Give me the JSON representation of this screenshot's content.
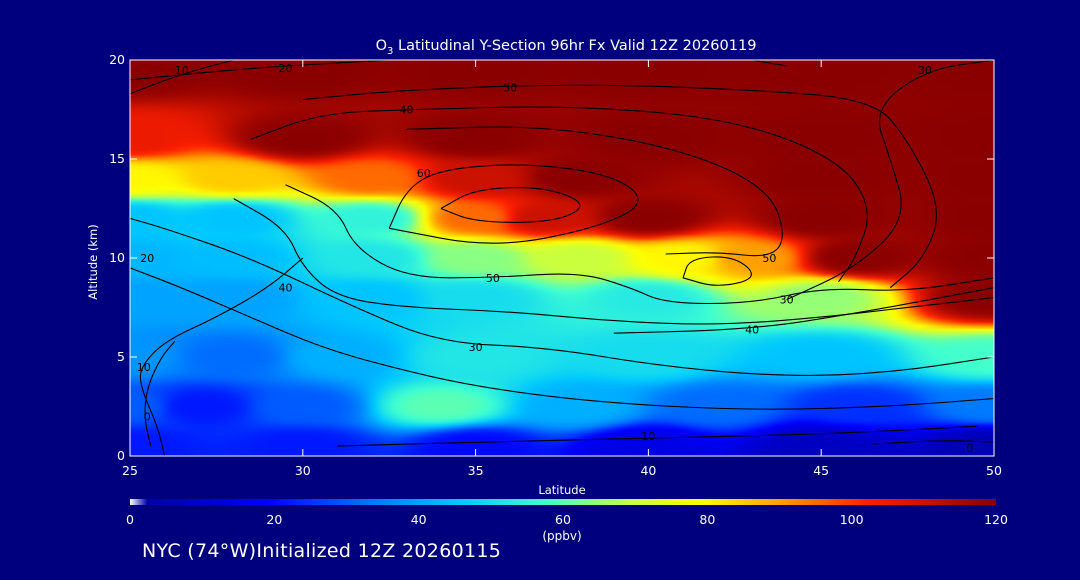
{
  "chart_data": {
    "type": "heatmap",
    "title_prefix": "O",
    "title_subscript": "3",
    "title_rest": " Latitudinal Y-Section 96hr  Fx Valid 12Z 20260119",
    "xlabel": "Latitude",
    "ylabel": "Altitude (km)",
    "xlim": [
      25,
      50
    ],
    "ylim": [
      0,
      20
    ],
    "x_ticks": [
      25,
      30,
      35,
      40,
      45,
      50
    ],
    "y_ticks": [
      0,
      5,
      10,
      15,
      20
    ],
    "grid": false,
    "colorbar": {
      "min": 0,
      "max": 120,
      "ticks": [
        0,
        20,
        40,
        60,
        80,
        100,
        120
      ],
      "label": "(ppbv)"
    },
    "field_points": [
      {
        "lat": 25,
        "alt": 0.5,
        "v": 22
      },
      {
        "lat": 30,
        "alt": 0.5,
        "v": 22
      },
      {
        "lat": 35,
        "alt": 0.5,
        "v": 20
      },
      {
        "lat": 40,
        "alt": 0.5,
        "v": 14
      },
      {
        "lat": 45,
        "alt": 0.5,
        "v": 6
      },
      {
        "lat": 50,
        "alt": 0.5,
        "v": 3
      },
      {
        "lat": 25,
        "alt": 2.5,
        "v": 30
      },
      {
        "lat": 27,
        "alt": 2.5,
        "v": 22
      },
      {
        "lat": 30,
        "alt": 2.5,
        "v": 30
      },
      {
        "lat": 34,
        "alt": 2.5,
        "v": 60
      },
      {
        "lat": 38,
        "alt": 2.5,
        "v": 42
      },
      {
        "lat": 42,
        "alt": 2.5,
        "v": 32
      },
      {
        "lat": 46,
        "alt": 2.5,
        "v": 25
      },
      {
        "lat": 50,
        "alt": 2.5,
        "v": 34
      },
      {
        "lat": 25,
        "alt": 5,
        "v": 38
      },
      {
        "lat": 28,
        "alt": 5,
        "v": 32
      },
      {
        "lat": 31,
        "alt": 5,
        "v": 42
      },
      {
        "lat": 35,
        "alt": 5,
        "v": 52
      },
      {
        "lat": 40,
        "alt": 5,
        "v": 50
      },
      {
        "lat": 45,
        "alt": 5,
        "v": 45
      },
      {
        "lat": 50,
        "alt": 5,
        "v": 58
      },
      {
        "lat": 25,
        "alt": 8,
        "v": 40
      },
      {
        "lat": 28,
        "alt": 8,
        "v": 40
      },
      {
        "lat": 32,
        "alt": 8,
        "v": 45
      },
      {
        "lat": 35,
        "alt": 8,
        "v": 50
      },
      {
        "lat": 40,
        "alt": 8,
        "v": 53
      },
      {
        "lat": 45,
        "alt": 8,
        "v": 65
      },
      {
        "lat": 50,
        "alt": 8,
        "v": 120
      },
      {
        "lat": 25,
        "alt": 10,
        "v": 43
      },
      {
        "lat": 28,
        "alt": 10,
        "v": 44
      },
      {
        "lat": 32,
        "alt": 10,
        "v": 52
      },
      {
        "lat": 35,
        "alt": 10,
        "v": 64
      },
      {
        "lat": 38,
        "alt": 10,
        "v": 70
      },
      {
        "lat": 41,
        "alt": 10,
        "v": 80
      },
      {
        "lat": 43,
        "alt": 10,
        "v": 90
      },
      {
        "lat": 46,
        "alt": 10,
        "v": 120
      },
      {
        "lat": 50,
        "alt": 10,
        "v": 120
      },
      {
        "lat": 25,
        "alt": 12,
        "v": 45
      },
      {
        "lat": 28,
        "alt": 12,
        "v": 45
      },
      {
        "lat": 32,
        "alt": 12,
        "v": 55
      },
      {
        "lat": 35,
        "alt": 12,
        "v": 95
      },
      {
        "lat": 37,
        "alt": 12,
        "v": 110
      },
      {
        "lat": 40,
        "alt": 12,
        "v": 120
      },
      {
        "lat": 45,
        "alt": 12,
        "v": 120
      },
      {
        "lat": 50,
        "alt": 12,
        "v": 120
      },
      {
        "lat": 25,
        "alt": 14,
        "v": 80
      },
      {
        "lat": 28,
        "alt": 14,
        "v": 85
      },
      {
        "lat": 32,
        "alt": 14,
        "v": 95
      },
      {
        "lat": 35,
        "alt": 14,
        "v": 110
      },
      {
        "lat": 38,
        "alt": 14,
        "v": 120
      },
      {
        "lat": 45,
        "alt": 14,
        "v": 120
      },
      {
        "lat": 50,
        "alt": 14,
        "v": 120
      },
      {
        "lat": 25,
        "alt": 16,
        "v": 105
      },
      {
        "lat": 30,
        "alt": 16,
        "v": 120
      },
      {
        "lat": 35,
        "alt": 16,
        "v": 120
      },
      {
        "lat": 40,
        "alt": 16,
        "v": 120
      },
      {
        "lat": 45,
        "alt": 16,
        "v": 120
      },
      {
        "lat": 50,
        "alt": 16,
        "v": 120
      },
      {
        "lat": 25,
        "alt": 19.5,
        "v": 120
      },
      {
        "lat": 30,
        "alt": 19.5,
        "v": 120
      },
      {
        "lat": 35,
        "alt": 19.5,
        "v": 120
      },
      {
        "lat": 40,
        "alt": 19.5,
        "v": 120
      },
      {
        "lat": 45,
        "alt": 19.5,
        "v": 120
      },
      {
        "lat": 50,
        "alt": 19.5,
        "v": 120
      }
    ],
    "contour_lines": [
      {
        "label": "0",
        "label_at": [
          25.5,
          2.0
        ],
        "points": [
          [
            25.6,
            0.5
          ],
          [
            25.4,
            2.0
          ],
          [
            25.5,
            3.5
          ],
          [
            25.9,
            5.0
          ],
          [
            26.3,
            5.8
          ]
        ]
      },
      {
        "label": "10",
        "label_at": [
          25.4,
          4.5
        ],
        "points": [
          [
            26.0,
            0.0
          ],
          [
            25.8,
            1.5
          ],
          [
            25.3,
            3.5
          ],
          [
            25.3,
            4.5
          ],
          [
            26.0,
            5.8
          ],
          [
            27.5,
            7.0
          ],
          [
            29.0,
            8.5
          ],
          [
            30.0,
            10.0
          ]
        ]
      },
      {
        "label": "10",
        "label_at": [
          40.0,
          1.0
        ],
        "points": [
          [
            31.0,
            0.5
          ],
          [
            35.0,
            0.7
          ],
          [
            40.0,
            0.9
          ],
          [
            45.0,
            1.1
          ],
          [
            49.5,
            1.5
          ]
        ]
      },
      {
        "label": "20",
        "label_at": [
          25.5,
          10.0
        ],
        "points": [
          [
            25.0,
            9.5
          ],
          [
            26.5,
            8.5
          ],
          [
            28.5,
            7.0
          ],
          [
            30.5,
            5.5
          ],
          [
            32.5,
            4.5
          ],
          [
            35.0,
            3.5
          ],
          [
            38.5,
            2.7
          ],
          [
            43.0,
            2.3
          ],
          [
            47.0,
            2.5
          ],
          [
            50.0,
            2.9
          ]
        ]
      },
      {
        "label": "30",
        "label_at": [
          35.0,
          5.5
        ],
        "points": [
          [
            25.0,
            12.0
          ],
          [
            26.0,
            11.5
          ],
          [
            28.5,
            10.0
          ],
          [
            31.5,
            7.5
          ],
          [
            34.0,
            5.7
          ],
          [
            37.0,
            5.5
          ],
          [
            40.5,
            4.5
          ],
          [
            44.0,
            4.0
          ],
          [
            47.0,
            4.2
          ],
          [
            50.0,
            5.0
          ]
        ]
      },
      {
        "label": "40",
        "label_at": [
          29.5,
          8.5
        ],
        "points": [
          [
            28.0,
            13.0
          ],
          [
            29.5,
            11.5
          ],
          [
            30.0,
            9.5
          ],
          [
            31.0,
            8.0
          ],
          [
            33.0,
            7.5
          ],
          [
            36.0,
            7.3
          ],
          [
            39.0,
            6.8
          ],
          [
            42.0,
            6.6
          ],
          [
            45.0,
            7.0
          ],
          [
            47.5,
            7.5
          ],
          [
            50.0,
            8.0
          ]
        ]
      },
      {
        "label": "40",
        "label_at": [
          43.0,
          6.4
        ],
        "points": [
          [
            39.0,
            6.2
          ],
          [
            43.0,
            6.4
          ],
          [
            46.0,
            7.2
          ],
          [
            50.0,
            8.5
          ]
        ]
      },
      {
        "label": "50",
        "label_at": [
          35.5,
          9.0
        ],
        "points": [
          [
            29.5,
            13.7
          ],
          [
            31.0,
            12.5
          ],
          [
            31.5,
            10.5
          ],
          [
            33.0,
            9.0
          ],
          [
            35.5,
            9.0
          ],
          [
            38.0,
            9.3
          ],
          [
            39.5,
            8.5
          ],
          [
            40.5,
            7.7
          ],
          [
            43.0,
            7.7
          ],
          [
            45.0,
            8.5
          ],
          [
            47.5,
            8.3
          ],
          [
            50.0,
            9.0
          ]
        ]
      },
      {
        "label": "",
        "label_at": null,
        "points": [
          [
            41.0,
            9.0
          ],
          [
            41.2,
            10.0
          ],
          [
            42.5,
            10.1
          ],
          [
            43.2,
            9.0
          ],
          [
            42.0,
            8.5
          ],
          [
            41.0,
            9.0
          ]
        ]
      },
      {
        "label": "60",
        "label_at": [
          33.5,
          14.3
        ],
        "points": [
          [
            32.5,
            11.5
          ],
          [
            33.0,
            13.5
          ],
          [
            34.0,
            14.5
          ],
          [
            36.5,
            14.8
          ],
          [
            39.0,
            14.2
          ],
          [
            40.0,
            12.8
          ],
          [
            38.5,
            11.5
          ],
          [
            35.5,
            10.5
          ],
          [
            32.5,
            11.5
          ]
        ]
      },
      {
        "label": "",
        "label_at": null,
        "points": [
          [
            34.0,
            12.5
          ],
          [
            35.0,
            13.5
          ],
          [
            37.0,
            13.6
          ],
          [
            38.3,
            12.7
          ],
          [
            37.3,
            11.8
          ],
          [
            35.0,
            11.8
          ],
          [
            34.0,
            12.5
          ]
        ]
      },
      {
        "label": "50",
        "label_at": [
          43.5,
          10.0
        ],
        "points": [
          [
            33.0,
            16.5
          ],
          [
            37.0,
            16.7
          ],
          [
            41.0,
            15.5
          ],
          [
            43.5,
            13.5
          ],
          [
            44.0,
            11.0
          ],
          [
            43.5,
            10.0
          ],
          [
            42.0,
            10.3
          ],
          [
            40.5,
            10.2
          ]
        ]
      },
      {
        "label": "40",
        "label_at": [
          33.0,
          17.5
        ],
        "points": [
          [
            28.5,
            16.0
          ],
          [
            30.5,
            17.3
          ],
          [
            33.0,
            17.5
          ],
          [
            38.0,
            17.7
          ],
          [
            42.5,
            17.0
          ],
          [
            45.5,
            15.0
          ],
          [
            46.5,
            12.5
          ],
          [
            46.0,
            10.0
          ],
          [
            45.5,
            8.8
          ]
        ]
      },
      {
        "label": "50",
        "label_at": [
          36.0,
          18.6
        ],
        "points": [
          [
            30.0,
            18.0
          ],
          [
            33.0,
            18.5
          ],
          [
            38.0,
            18.8
          ],
          [
            43.0,
            18.5
          ],
          [
            46.5,
            18.0
          ],
          [
            47.5,
            16.0
          ],
          [
            48.5,
            12.5
          ],
          [
            48.0,
            10.0
          ],
          [
            47.0,
            8.5
          ]
        ]
      },
      {
        "label": "20",
        "label_at": [
          29.5,
          19.6
        ],
        "points": [
          [
            25.0,
            19.0
          ],
          [
            28.5,
            19.6
          ],
          [
            32.5,
            20.0
          ]
        ]
      },
      {
        "label": "10",
        "label_at": [
          26.5,
          19.5
        ],
        "points": [
          [
            25.0,
            18.3
          ],
          [
            26.5,
            19.3
          ],
          [
            28.0,
            20.0
          ]
        ]
      },
      {
        "label": "30",
        "label_at": [
          44.0,
          7.9
        ],
        "points": [
          [
            50.0,
            20.0
          ],
          [
            48.0,
            19.5
          ],
          [
            46.5,
            17.5
          ],
          [
            47.0,
            15.0
          ],
          [
            47.5,
            12.0
          ],
          [
            46.0,
            9.5
          ],
          [
            44.0,
            7.9
          ]
        ]
      },
      {
        "label": "30",
        "label_at": [
          48.0,
          19.5
        ],
        "points": [
          [
            43.0,
            20.0
          ],
          [
            44.0,
            19.7
          ]
        ]
      },
      {
        "label": "0",
        "label_at": [
          49.3,
          0.4
        ],
        "points": [
          [
            46.5,
            0.6
          ],
          [
            48.5,
            0.8
          ],
          [
            50.0,
            0.7
          ]
        ]
      }
    ]
  },
  "footer_text": "NYC (74°W)Initialized 12Z 20260115"
}
